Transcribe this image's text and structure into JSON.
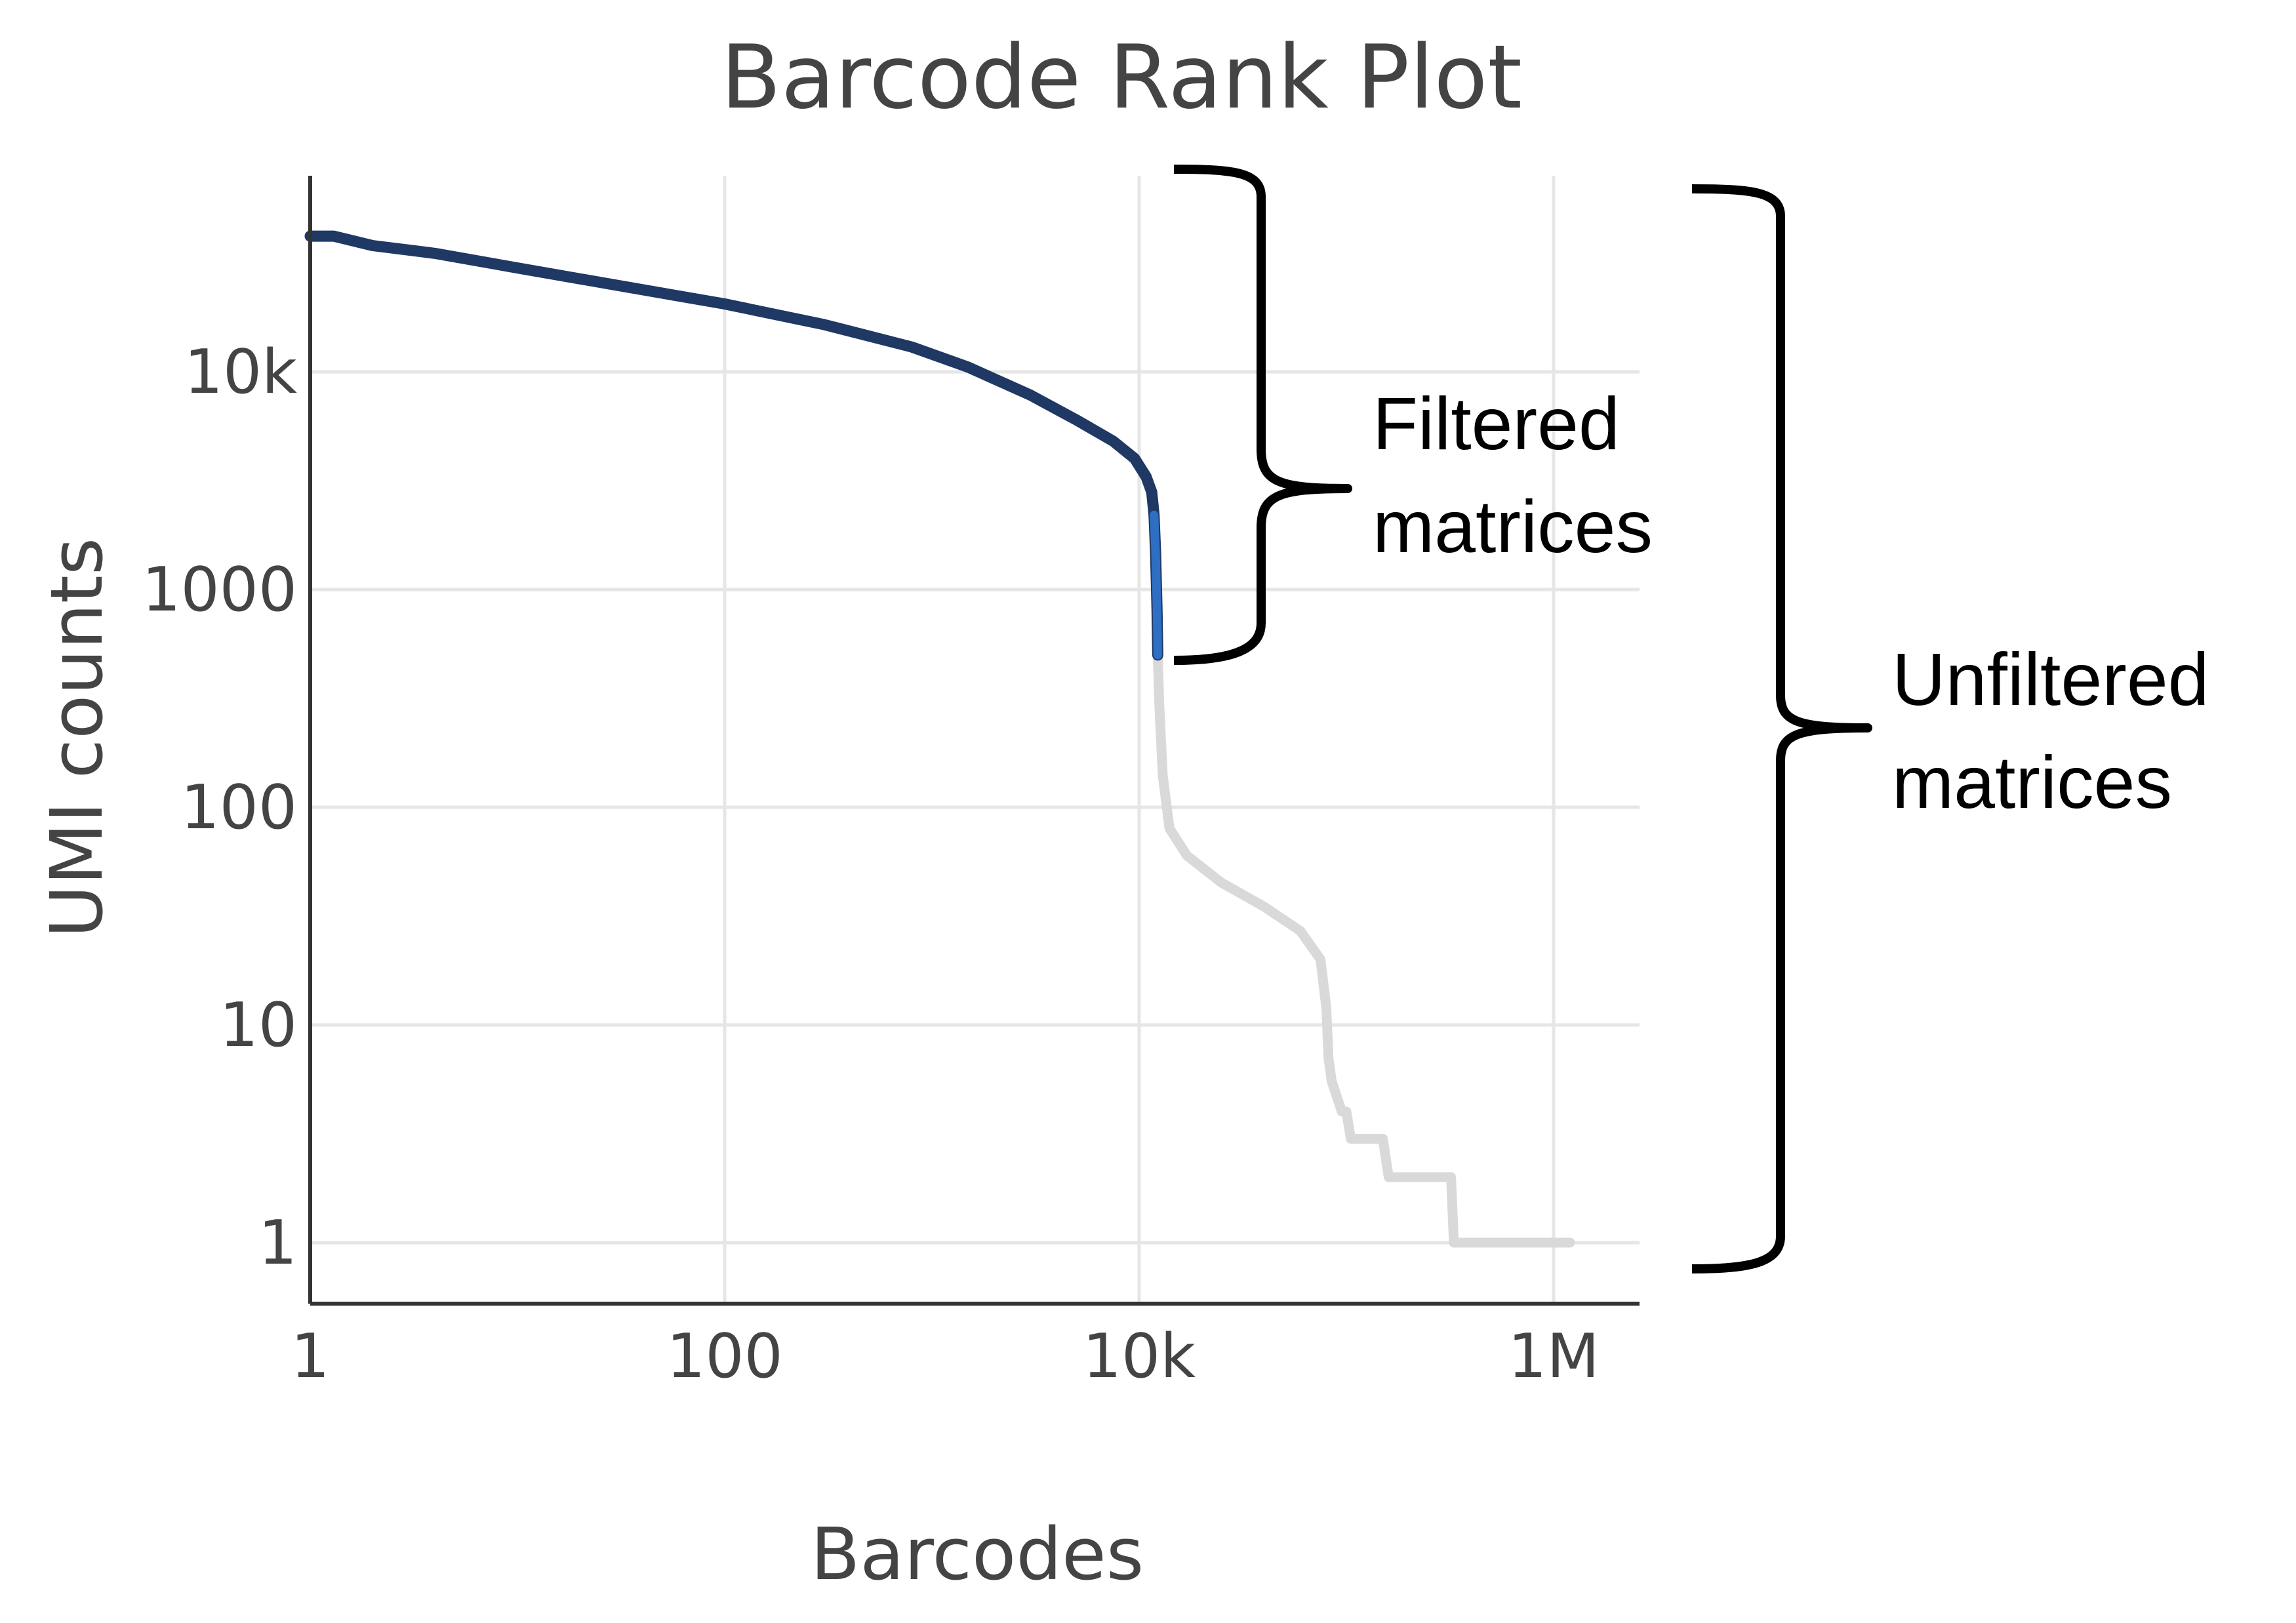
{
  "chart_data": {
    "type": "line",
    "title": "Barcode Rank Plot",
    "xlabel": "Barcodes",
    "ylabel": "UMI counts",
    "x_scale": "log",
    "y_scale": "log",
    "xlim": [
      1,
      2000000
    ],
    "ylim": [
      0.55,
      100000
    ],
    "grid": true,
    "x_ticks": [
      {
        "value": 1,
        "label": "1"
      },
      {
        "value": 100,
        "label": "100"
      },
      {
        "value": 10000,
        "label": "10k"
      },
      {
        "value": 1000000,
        "label": "1M"
      }
    ],
    "y_ticks": [
      {
        "value": 1,
        "label": "1"
      },
      {
        "value": 10,
        "label": "10"
      },
      {
        "value": 100,
        "label": "100"
      },
      {
        "value": 1000,
        "label": "1000"
      },
      {
        "value": 10000,
        "label": "10k"
      }
    ],
    "series": [
      {
        "role": "filtered",
        "color": "#1f3864",
        "accent_color": "#2e6fc4",
        "points": [
          [
            1,
            42000
          ],
          [
            1.3,
            42000
          ],
          [
            2,
            38000
          ],
          [
            4,
            35000
          ],
          [
            10,
            30000
          ],
          [
            30,
            25000
          ],
          [
            100,
            20500
          ],
          [
            300,
            16500
          ],
          [
            800,
            13000
          ],
          [
            1500,
            10500
          ],
          [
            3000,
            7800
          ],
          [
            5000,
            6000
          ],
          [
            7500,
            4800
          ],
          [
            9500,
            4000
          ],
          [
            10800,
            3300
          ],
          [
            11500,
            2800
          ],
          [
            11800,
            2200
          ],
          [
            12000,
            1500
          ],
          [
            12200,
            800
          ],
          [
            12300,
            500
          ]
        ]
      },
      {
        "role": "background",
        "color": "#d9d9d9",
        "points": [
          [
            12300,
            500
          ],
          [
            12500,
            300
          ],
          [
            13000,
            140
          ],
          [
            14000,
            80
          ],
          [
            17000,
            60
          ],
          [
            25000,
            45
          ],
          [
            40000,
            35
          ],
          [
            60000,
            27
          ],
          [
            75000,
            20
          ],
          [
            80000,
            12
          ],
          [
            82000,
            7
          ],
          [
            85000,
            5.5
          ],
          [
            95000,
            4
          ],
          [
            100000,
            4
          ],
          [
            105000,
            3
          ],
          [
            150000,
            3
          ],
          [
            160000,
            2
          ],
          [
            320000,
            2
          ],
          [
            330000,
            1
          ],
          [
            1200000,
            1
          ]
        ]
      }
    ]
  },
  "annotations": {
    "filtered_line1": "Filtered",
    "filtered_line2": "matrices",
    "unfiltered_line1": "Unfiltered",
    "unfiltered_line2": "matrices"
  }
}
